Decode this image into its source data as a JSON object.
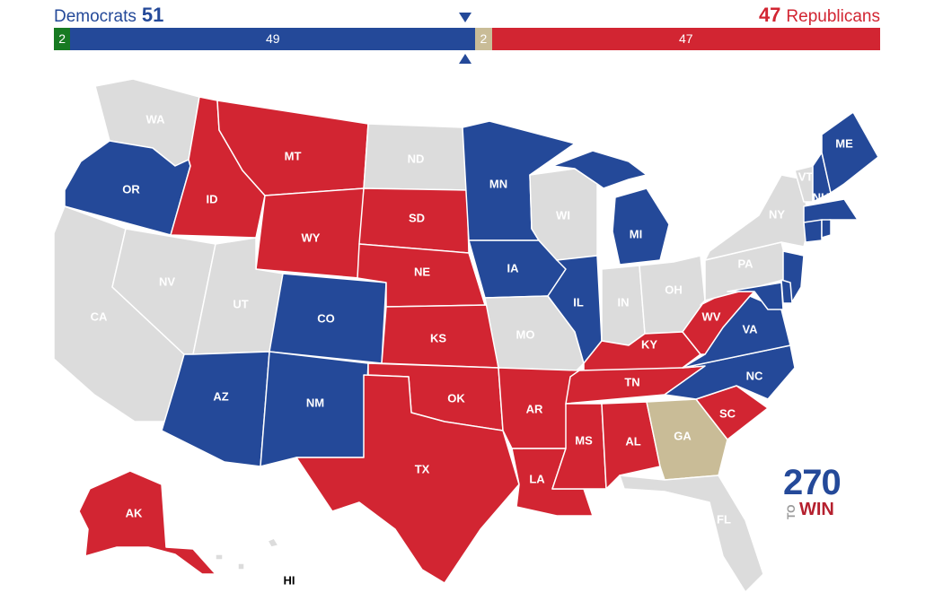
{
  "header": {
    "dem_label": "Democrats",
    "dem_total": "51",
    "rep_total": "47",
    "rep_label": "Republicans"
  },
  "colors": {
    "dem": "#244999",
    "rep": "#d22532",
    "ind": "#177a22",
    "tossup": "#c9bc97",
    "none": "#dcdcdc"
  },
  "bar": [
    {
      "id": "ind",
      "label": "2",
      "value": 2,
      "color": "#177a22"
    },
    {
      "id": "dem",
      "label": "49",
      "value": 49,
      "color": "#244999"
    },
    {
      "id": "tossup",
      "label": "2",
      "value": 2,
      "color": "#c9bc97"
    },
    {
      "id": "rep",
      "label": "47",
      "value": 47,
      "color": "#d22532"
    }
  ],
  "states": [
    {
      "abbr": "WA",
      "party": "none"
    },
    {
      "abbr": "OR",
      "party": "dem"
    },
    {
      "abbr": "CA",
      "party": "none"
    },
    {
      "abbr": "NV",
      "party": "none"
    },
    {
      "abbr": "ID",
      "party": "rep"
    },
    {
      "abbr": "MT",
      "party": "rep"
    },
    {
      "abbr": "WY",
      "party": "rep"
    },
    {
      "abbr": "UT",
      "party": "none"
    },
    {
      "abbr": "AZ",
      "party": "dem"
    },
    {
      "abbr": "CO",
      "party": "dem"
    },
    {
      "abbr": "NM",
      "party": "dem"
    },
    {
      "abbr": "ND",
      "party": "none"
    },
    {
      "abbr": "SD",
      "party": "rep"
    },
    {
      "abbr": "NE",
      "party": "rep"
    },
    {
      "abbr": "KS",
      "party": "rep"
    },
    {
      "abbr": "OK",
      "party": "rep"
    },
    {
      "abbr": "TX",
      "party": "rep"
    },
    {
      "abbr": "MN",
      "party": "dem"
    },
    {
      "abbr": "IA",
      "party": "dem"
    },
    {
      "abbr": "MO",
      "party": "none"
    },
    {
      "abbr": "AR",
      "party": "rep"
    },
    {
      "abbr": "LA",
      "party": "rep"
    },
    {
      "abbr": "WI",
      "party": "none"
    },
    {
      "abbr": "IL",
      "party": "dem"
    },
    {
      "abbr": "MI",
      "party": "dem"
    },
    {
      "abbr": "IN",
      "party": "none"
    },
    {
      "abbr": "OH",
      "party": "none"
    },
    {
      "abbr": "KY",
      "party": "rep"
    },
    {
      "abbr": "TN",
      "party": "rep"
    },
    {
      "abbr": "MS",
      "party": "rep"
    },
    {
      "abbr": "AL",
      "party": "rep"
    },
    {
      "abbr": "GA",
      "party": "tossup"
    },
    {
      "abbr": "FL",
      "party": "none"
    },
    {
      "abbr": "SC",
      "party": "rep"
    },
    {
      "abbr": "NC",
      "party": "dem"
    },
    {
      "abbr": "VA",
      "party": "dem"
    },
    {
      "abbr": "WV",
      "party": "rep"
    },
    {
      "abbr": "PA",
      "party": "none"
    },
    {
      "abbr": "NY",
      "party": "none"
    },
    {
      "abbr": "VT",
      "party": "none"
    },
    {
      "abbr": "NH",
      "party": "dem"
    },
    {
      "abbr": "ME",
      "party": "dem"
    },
    {
      "abbr": "MA",
      "party": "dem"
    },
    {
      "abbr": "CT",
      "party": "dem"
    },
    {
      "abbr": "RI",
      "party": "dem"
    },
    {
      "abbr": "NJ",
      "party": "dem"
    },
    {
      "abbr": "DE",
      "party": "dem"
    },
    {
      "abbr": "MD",
      "party": "dem"
    },
    {
      "abbr": "AK",
      "party": "rep"
    },
    {
      "abbr": "HI",
      "party": "none"
    }
  ],
  "logo": {
    "top": "270",
    "to": "TO",
    "bottom": "WIN"
  }
}
